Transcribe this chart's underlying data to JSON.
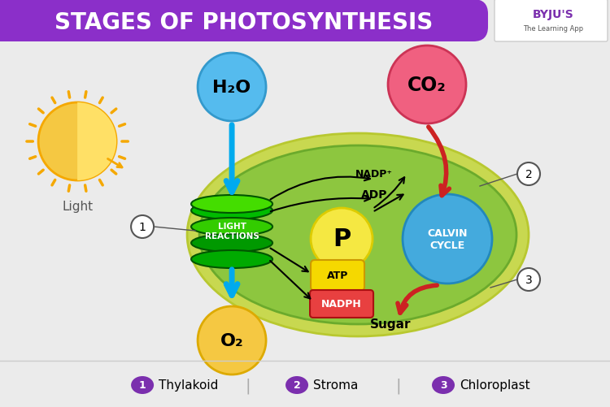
{
  "title": "STAGES OF PHOTOSYNTHESIS",
  "title_bg": "#8B2FC9",
  "title_color": "#FFFFFF",
  "bg_color": "#EBEBEB",
  "footer_labels": [
    "1",
    "2",
    "3"
  ],
  "footer_texts": [
    "Thylakoid",
    "Stroma",
    "Chloroplast"
  ],
  "footer_color": "#7B2FAE",
  "chloroplast_outer": "#C8D850",
  "chloroplast_inner": "#6BAA2C",
  "chloroplast_fill": "#8DC63F",
  "thylakoid_colors": [
    "#00CC00",
    "#33BB00",
    "#009900"
  ],
  "water_color": "#55BBEE",
  "water_text": "H₂O",
  "o2_color": "#F5C842",
  "o2_text": "O₂",
  "co2_color": "#F06080",
  "co2_text": "CO₂",
  "p_color": "#F5E842",
  "p_text": "P",
  "atp_color": "#F5D800",
  "atp_text": "ATP",
  "nadph_color": "#E84040",
  "nadph_text": "NADPH",
  "calvin_color": "#44AADD",
  "calvin_text": "CALVIN\nCYCLE",
  "light_reactions_text": "LIGHT\nREACTIONS",
  "arrow_color": "#00AAEE",
  "black_arrow": "#111111",
  "red_arrow": "#CC2222",
  "sugar_text": "Sugar",
  "nadp_text": "NADP⁺",
  "adp_text": "ADP",
  "legend_bg": "#7B2FAE"
}
